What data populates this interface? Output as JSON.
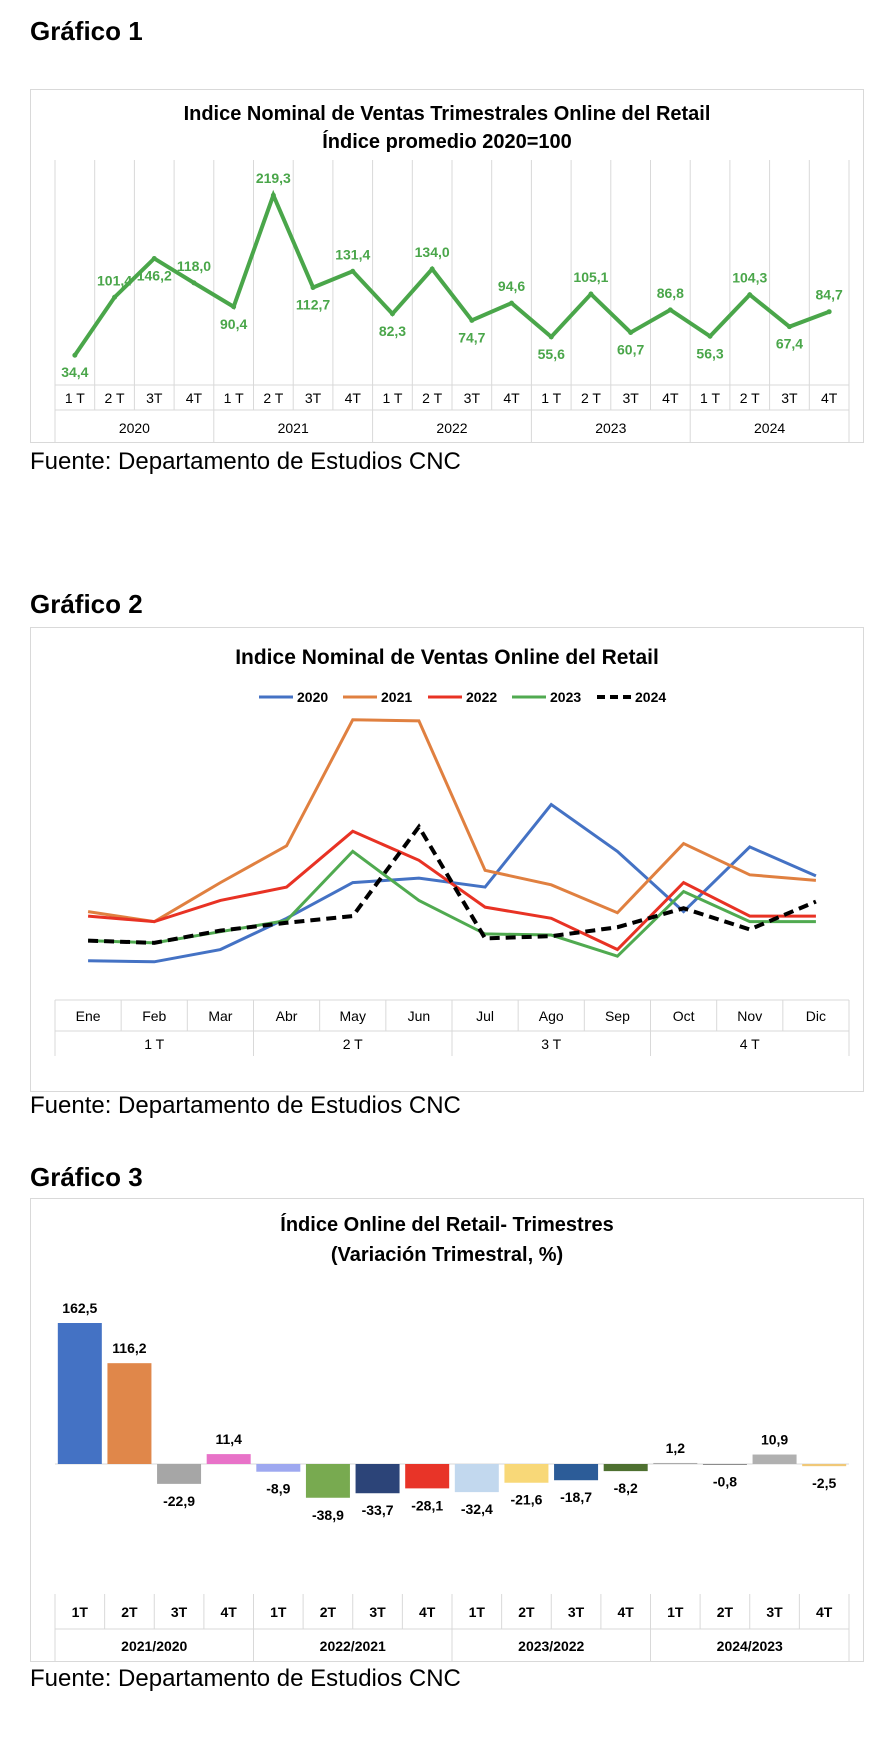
{
  "chart1_heading": "Gráfico 1",
  "chart2_heading": "Gráfico 2",
  "chart3_heading": "Gráfico 3",
  "source_text": "Fuente: Departamento de Estudios CNC",
  "chart_data": [
    {
      "type": "line",
      "title": "Indice Nominal de Ventas Trimestrales Online del Retail",
      "subtitle": "Índice promedio 2020=100",
      "categories": [
        "1 T",
        "2 T",
        "3T",
        "4T",
        "1 T",
        "2 T",
        "3T",
        "4T",
        "1 T",
        "2 T",
        "3T",
        "4T",
        "1 T",
        "2 T",
        "3T",
        "4T",
        "1 T",
        "2 T",
        "3T",
        "4T"
      ],
      "groups": [
        "2020",
        "2021",
        "2022",
        "2023",
        "2024"
      ],
      "values": [
        34.4,
        101.4,
        146.2,
        118.0,
        90.4,
        219.3,
        112.7,
        131.4,
        82.3,
        134.0,
        74.7,
        94.6,
        55.6,
        105.1,
        60.7,
        86.8,
        56.3,
        104.3,
        67.4,
        84.7
      ],
      "data_labels": [
        "34,4",
        "101,4",
        "146,2",
        "118,0",
        "90,4",
        "219,3",
        "112,7",
        "131,4",
        "82,3",
        "134,0",
        "74,7",
        "94,6",
        "55,6",
        "105,1",
        "60,7",
        "86,8",
        "56,3",
        "104,3",
        "67,4",
        "84,7"
      ],
      "ylim": [
        0,
        260
      ],
      "grid": "vertical",
      "color": "#4aa64a"
    },
    {
      "type": "line",
      "title": "Indice Nominal de Ventas Online del Retail",
      "categories": [
        "Ene",
        "Feb",
        "Mar",
        "Abr",
        "May",
        "Jun",
        "Jul",
        "Ago",
        "Sep",
        "Oct",
        "Nov",
        "Dic"
      ],
      "groups": [
        "1 T",
        "2 T",
        "3 T",
        "4 T"
      ],
      "legend_position": "top",
      "ylim": [
        0,
        260
      ],
      "series": [
        {
          "name": "2020",
          "color": "#4472c4",
          "dashed": false,
          "values": [
            20,
            19,
            30,
            58,
            90,
            94,
            86,
            160,
            118,
            64,
            122,
            96
          ]
        },
        {
          "name": "2021",
          "color": "#e08040",
          "dashed": false,
          "values": [
            64,
            55,
            90,
            123,
            236,
            235,
            101,
            88,
            63,
            125,
            97,
            92
          ]
        },
        {
          "name": "2022",
          "color": "#e83224",
          "dashed": false,
          "values": [
            60,
            55,
            74,
            86,
            136,
            110,
            68,
            58,
            30,
            90,
            60,
            60
          ]
        },
        {
          "name": "2023",
          "color": "#50aa50",
          "dashed": false,
          "values": [
            38,
            36,
            46,
            56,
            118,
            74,
            44,
            43,
            24,
            82,
            55,
            55
          ]
        },
        {
          "name": "2024",
          "color": "#000000",
          "dashed": true,
          "values": [
            38,
            36,
            47,
            54,
            60,
            140,
            40,
            42,
            50,
            67,
            48,
            73
          ]
        }
      ]
    },
    {
      "type": "bar",
      "title": "Índice Online del Retail- Trimestres",
      "subtitle": "(Variación Trimestral, %)",
      "categories": [
        "1T",
        "2T",
        "3T",
        "4T",
        "1T",
        "2T",
        "3T",
        "4T",
        "1T",
        "2T",
        "3T",
        "4T",
        "1T",
        "2T",
        "3T",
        "4T"
      ],
      "groups": [
        "2021/2020",
        "2022/2021",
        "2023/2022",
        "2024/2023"
      ],
      "values": [
        162.5,
        116.2,
        -22.9,
        11.4,
        -8.9,
        -38.9,
        -33.7,
        -28.1,
        -32.4,
        -21.6,
        -18.7,
        -8.2,
        1.2,
        -0.8,
        10.9,
        -2.5
      ],
      "data_labels": [
        "162,5",
        "116,2",
        "-22,9",
        "11,4",
        "-8,9",
        "-38,9",
        "-33,7",
        "-28,1",
        "-32,4",
        "-21,6",
        "-18,7",
        "-8,2",
        "1,2",
        "-0,8",
        "10,9",
        "-2,5"
      ],
      "colors": [
        "#4472c4",
        "#e0874a",
        "#a6a6a6",
        "#e872c8",
        "#9ea8f0",
        "#78aa50",
        "#2c4478",
        "#e83428",
        "#c2d8ee",
        "#f8d878",
        "#2c5c98",
        "#4e7030",
        "#ababab",
        "#8c8c8c",
        "#b0b0b0",
        "#f0c878"
      ],
      "ylim": [
        -60,
        165
      ]
    }
  ]
}
